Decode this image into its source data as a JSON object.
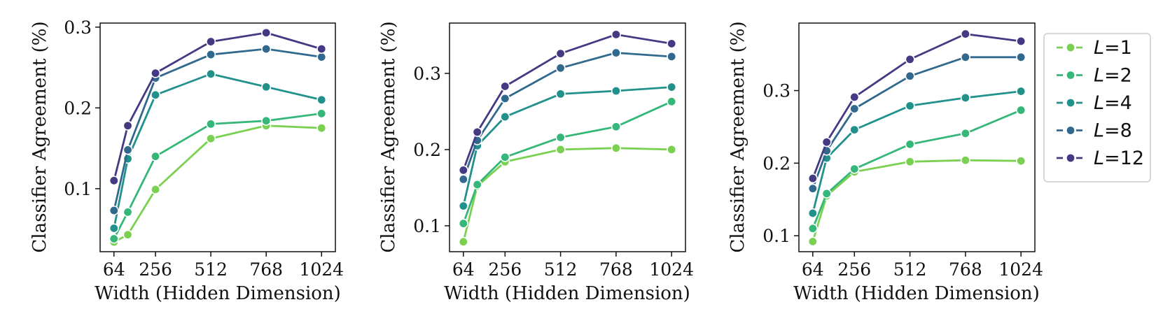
{
  "colors": {
    "L1": "#7ad151",
    "L2": "#35b779",
    "L4": "#21918c",
    "L8": "#31688e",
    "L12": "#443983"
  },
  "legend": {
    "entries": [
      {
        "key": "L1",
        "prefix": "L",
        "value": "=1"
      },
      {
        "key": "L2",
        "prefix": "L",
        "value": "=2"
      },
      {
        "key": "L4",
        "prefix": "L",
        "value": "=4"
      },
      {
        "key": "L8",
        "prefix": "L",
        "value": "=8"
      },
      {
        "key": "L12",
        "prefix": "L",
        "value": "=12"
      }
    ]
  },
  "chart_data": [
    {
      "type": "line",
      "xlabel": "Width (Hidden Dimension)",
      "ylabel": "Classifier Agreement (%)",
      "x": [
        64,
        128,
        256,
        512,
        768,
        1024
      ],
      "xticks": [
        64,
        256,
        512,
        768,
        1024
      ],
      "yticks": [
        0.1,
        0.2,
        0.3
      ],
      "xlim": [
        0,
        1088
      ],
      "ylim": [
        0.022,
        0.305
      ],
      "grid": false,
      "series": [
        {
          "name": "L=1",
          "color_key": "L1",
          "values": [
            0.034,
            0.043,
            0.099,
            0.162,
            0.178,
            0.175
          ]
        },
        {
          "name": "L=2",
          "color_key": "L2",
          "values": [
            0.038,
            0.071,
            0.14,
            0.18,
            0.184,
            0.193
          ]
        },
        {
          "name": "L=4",
          "color_key": "L4",
          "values": [
            0.051,
            0.137,
            0.216,
            0.242,
            0.226,
            0.21
          ]
        },
        {
          "name": "L=8",
          "color_key": "L8",
          "values": [
            0.073,
            0.148,
            0.237,
            0.266,
            0.273,
            0.263
          ]
        },
        {
          "name": "L=12",
          "color_key": "L12",
          "values": [
            0.11,
            0.178,
            0.243,
            0.282,
            0.293,
            0.273
          ]
        }
      ]
    },
    {
      "type": "line",
      "xlabel": "Width (Hidden Dimension)",
      "ylabel": "Classifier Agreement (%)",
      "x": [
        64,
        128,
        256,
        512,
        768,
        1024
      ],
      "xticks": [
        64,
        256,
        512,
        768,
        1024
      ],
      "yticks": [
        0.1,
        0.2,
        0.3
      ],
      "xlim": [
        0,
        1088
      ],
      "ylim": [
        0.066,
        0.366
      ],
      "grid": false,
      "series": [
        {
          "name": "L=1",
          "color_key": "L1",
          "values": [
            0.079,
            0.152,
            0.184,
            0.2,
            0.202,
            0.2
          ]
        },
        {
          "name": "L=2",
          "color_key": "L2",
          "values": [
            0.103,
            0.154,
            0.19,
            0.216,
            0.23,
            0.263
          ]
        },
        {
          "name": "L=4",
          "color_key": "L4",
          "values": [
            0.126,
            0.205,
            0.243,
            0.273,
            0.277,
            0.282
          ]
        },
        {
          "name": "L=8",
          "color_key": "L8",
          "values": [
            0.161,
            0.212,
            0.267,
            0.307,
            0.327,
            0.322
          ]
        },
        {
          "name": "L=12",
          "color_key": "L12",
          "values": [
            0.173,
            0.223,
            0.283,
            0.326,
            0.351,
            0.339
          ]
        }
      ]
    },
    {
      "type": "line",
      "xlabel": "Width (Hidden Dimension)",
      "ylabel": "Classifier Agreement (%)",
      "x": [
        64,
        128,
        256,
        512,
        768,
        1024
      ],
      "xticks": [
        64,
        256,
        512,
        768,
        1024
      ],
      "yticks": [
        0.1,
        0.2,
        0.3
      ],
      "xlim": [
        0,
        1088
      ],
      "ylim": [
        0.078,
        0.393
      ],
      "grid": false,
      "series": [
        {
          "name": "L=1",
          "color_key": "L1",
          "values": [
            0.092,
            0.155,
            0.188,
            0.202,
            0.204,
            0.203
          ]
        },
        {
          "name": "L=2",
          "color_key": "L2",
          "values": [
            0.11,
            0.158,
            0.192,
            0.226,
            0.241,
            0.273
          ]
        },
        {
          "name": "L=4",
          "color_key": "L4",
          "values": [
            0.131,
            0.207,
            0.246,
            0.279,
            0.29,
            0.299
          ]
        },
        {
          "name": "L=8",
          "color_key": "L8",
          "values": [
            0.165,
            0.217,
            0.275,
            0.32,
            0.346,
            0.346
          ]
        },
        {
          "name": "L=12",
          "color_key": "L12",
          "values": [
            0.179,
            0.229,
            0.291,
            0.343,
            0.378,
            0.368
          ]
        }
      ]
    }
  ]
}
